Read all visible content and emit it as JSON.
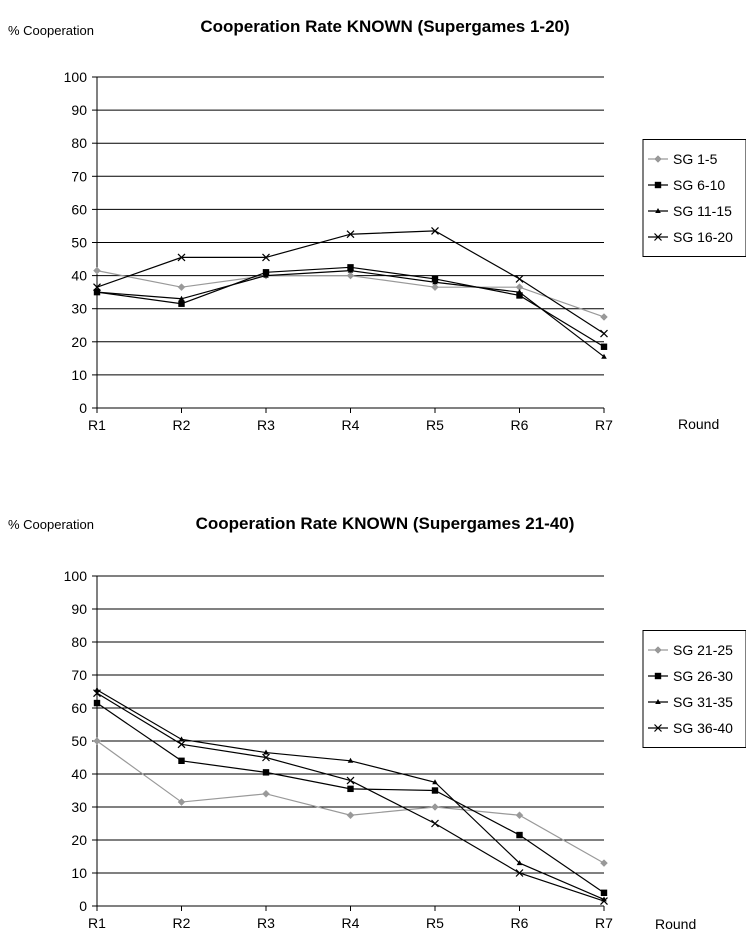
{
  "chart_data": [
    {
      "type": "line",
      "title": "Cooperation Rate KNOWN (Supergames 1-20)",
      "ylabel": "% Cooperation",
      "xlabel": "Round",
      "categories": [
        "R1",
        "R2",
        "R3",
        "R4",
        "R5",
        "R6",
        "R7"
      ],
      "ylim": [
        0,
        100
      ],
      "yticks": [
        0,
        10,
        20,
        30,
        40,
        50,
        60,
        70,
        80,
        90,
        100
      ],
      "grid": true,
      "legend_position": "right",
      "series": [
        {
          "name": "SG 1-5",
          "marker": "diamond",
          "color": "#999999",
          "values": [
            41.5,
            36.5,
            40,
            40,
            36.5,
            36.5,
            27.5
          ]
        },
        {
          "name": "SG 6-10",
          "marker": "square",
          "color": "#000000",
          "values": [
            35,
            31.5,
            41,
            42.5,
            39,
            34,
            18.5
          ]
        },
        {
          "name": "SG 11-15",
          "marker": "triangle",
          "color": "#000000",
          "values": [
            35,
            33,
            40,
            41.5,
            38,
            35,
            15.5
          ]
        },
        {
          "name": "SG 16-20",
          "marker": "x",
          "color": "#000000",
          "values": [
            36.5,
            45.5,
            45.5,
            52.5,
            53.5,
            39,
            22.5
          ]
        }
      ]
    },
    {
      "type": "line",
      "title": "Cooperation Rate KNOWN (Supergames 21-40)",
      "ylabel": "% Cooperation",
      "xlabel": "Round",
      "categories": [
        "R1",
        "R2",
        "R3",
        "R4",
        "R5",
        "R6",
        "R7"
      ],
      "ylim": [
        0,
        100
      ],
      "yticks": [
        0,
        10,
        20,
        30,
        40,
        50,
        60,
        70,
        80,
        90,
        100
      ],
      "grid": true,
      "legend_position": "right",
      "series": [
        {
          "name": "SG 21-25",
          "marker": "diamond",
          "color": "#999999",
          "values": [
            50,
            31.5,
            34,
            27.5,
            30,
            27.5,
            13
          ]
        },
        {
          "name": "SG 26-30",
          "marker": "square",
          "color": "#000000",
          "values": [
            61.5,
            44,
            40.5,
            35.5,
            35,
            21.5,
            4
          ]
        },
        {
          "name": "SG 31-35",
          "marker": "triangle",
          "color": "#000000",
          "values": [
            65.5,
            50.5,
            46.5,
            44,
            37.5,
            13,
            2
          ]
        },
        {
          "name": "SG 36-40",
          "marker": "x",
          "color": "#000000",
          "values": [
            64.5,
            49,
            45,
            38,
            25,
            10,
            1.5
          ]
        }
      ]
    }
  ]
}
